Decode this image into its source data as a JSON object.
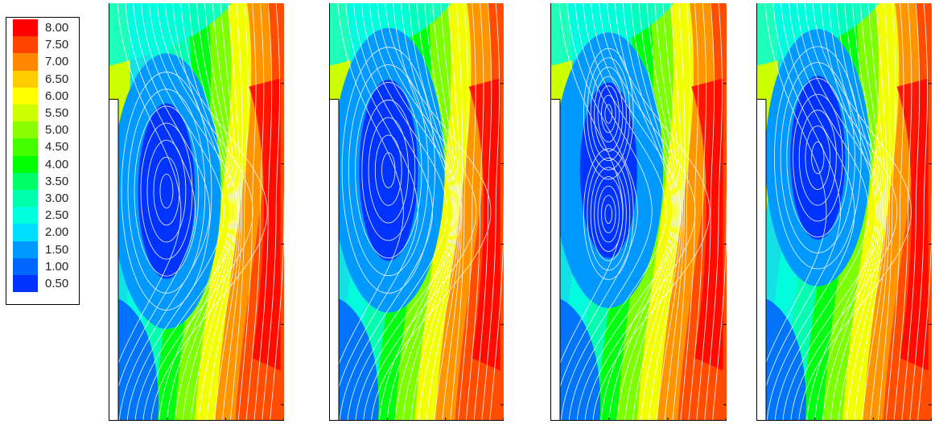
{
  "chart_data": {
    "type": "heatmap",
    "subtype": "contour plot with streamlines, 4 panels",
    "legend": {
      "position": "top-left",
      "levels": [
        {
          "label": "8.00",
          "color": "#ff0000"
        },
        {
          "label": "7.50",
          "color": "#ff4400"
        },
        {
          "label": "7.00",
          "color": "#ff8800"
        },
        {
          "label": "6.50",
          "color": "#ffcc00"
        },
        {
          "label": "6.00",
          "color": "#ffff00"
        },
        {
          "label": "5.50",
          "color": "#ccff00"
        },
        {
          "label": "5.00",
          "color": "#88ff00"
        },
        {
          "label": "4.50",
          "color": "#44ff00"
        },
        {
          "label": "4.00",
          "color": "#00ff00"
        },
        {
          "label": "3.50",
          "color": "#00ff66"
        },
        {
          "label": "3.00",
          "color": "#00ffaa"
        },
        {
          "label": "2.50",
          "color": "#00ffdd"
        },
        {
          "label": "2.00",
          "color": "#00ddff"
        },
        {
          "label": "1.50",
          "color": "#0099ff"
        },
        {
          "label": "1.00",
          "color": "#0066ff"
        },
        {
          "label": "0.50",
          "color": "#0033ff"
        }
      ]
    },
    "panels": [
      {
        "id": 1,
        "vortex_centers": 1
      },
      {
        "id": 2,
        "vortex_centers": 1
      },
      {
        "id": 3,
        "vortex_centers": 2
      },
      {
        "id": 4,
        "vortex_centers": 1
      }
    ],
    "grid": false,
    "streamline_color": "#ffffff"
  }
}
